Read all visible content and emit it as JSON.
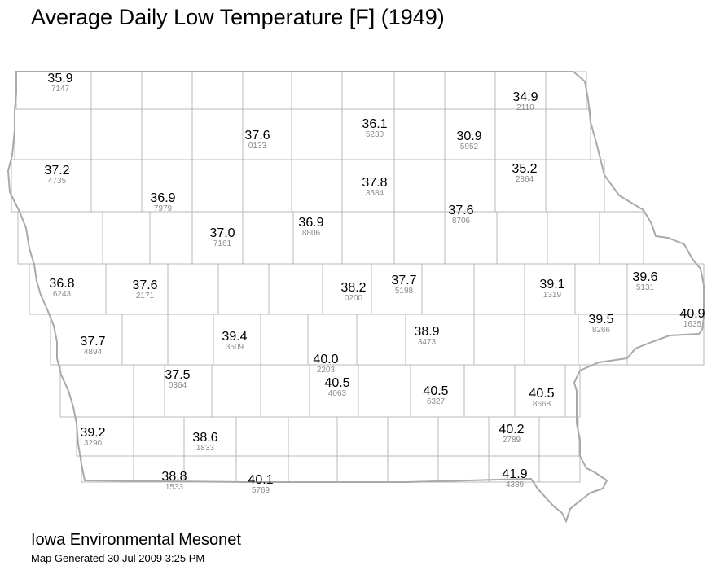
{
  "title": "Average Daily Low Temperature [F] (1949)",
  "footer": {
    "organization": "Iowa Environmental Mesonet",
    "generated": "Map Generated 30 Jul 2009 3:25 PM"
  },
  "colors": {
    "county_lines": "#b8b8b8",
    "state_outline": "#a9a9a9",
    "value_text": "#000000",
    "station_id_text": "#8c8c8c"
  },
  "stations": [
    {
      "value": "35.9",
      "id": "7147"
    },
    {
      "value": "34.9",
      "id": "2110"
    },
    {
      "value": "37.6",
      "id": "0133"
    },
    {
      "value": "36.1",
      "id": "5230"
    },
    {
      "value": "30.9",
      "id": "5952"
    },
    {
      "value": "37.2",
      "id": "4735"
    },
    {
      "value": "35.2",
      "id": "2864"
    },
    {
      "value": "37.8",
      "id": "3584"
    },
    {
      "value": "36.9",
      "id": "7979"
    },
    {
      "value": "37.6",
      "id": "8706"
    },
    {
      "value": "37.0",
      "id": "7161"
    },
    {
      "value": "36.9",
      "id": "8806"
    },
    {
      "value": "36.8",
      "id": "6243"
    },
    {
      "value": "37.6",
      "id": "2171"
    },
    {
      "value": "38.2",
      "id": "0200"
    },
    {
      "value": "37.7",
      "id": "5198"
    },
    {
      "value": "39.1",
      "id": "1319"
    },
    {
      "value": "39.6",
      "id": "5131"
    },
    {
      "value": "40.9",
      "id": "1635"
    },
    {
      "value": "39.5",
      "id": "8266"
    },
    {
      "value": "37.7",
      "id": "4894"
    },
    {
      "value": "39.4",
      "id": "3509"
    },
    {
      "value": "38.9",
      "id": "3473"
    },
    {
      "value": "40.0",
      "id": "2203"
    },
    {
      "value": "37.5",
      "id": "0364"
    },
    {
      "value": "40.5",
      "id": "4063"
    },
    {
      "value": "40.5",
      "id": "6327"
    },
    {
      "value": "40.5",
      "id": "8668"
    },
    {
      "value": "39.2",
      "id": "3290"
    },
    {
      "value": "38.6",
      "id": "1833"
    },
    {
      "value": "40.2",
      "id": "2789"
    },
    {
      "value": "38.8",
      "id": "1533"
    },
    {
      "value": "40.1",
      "id": "5769"
    },
    {
      "value": "41.9",
      "id": "4389"
    }
  ]
}
